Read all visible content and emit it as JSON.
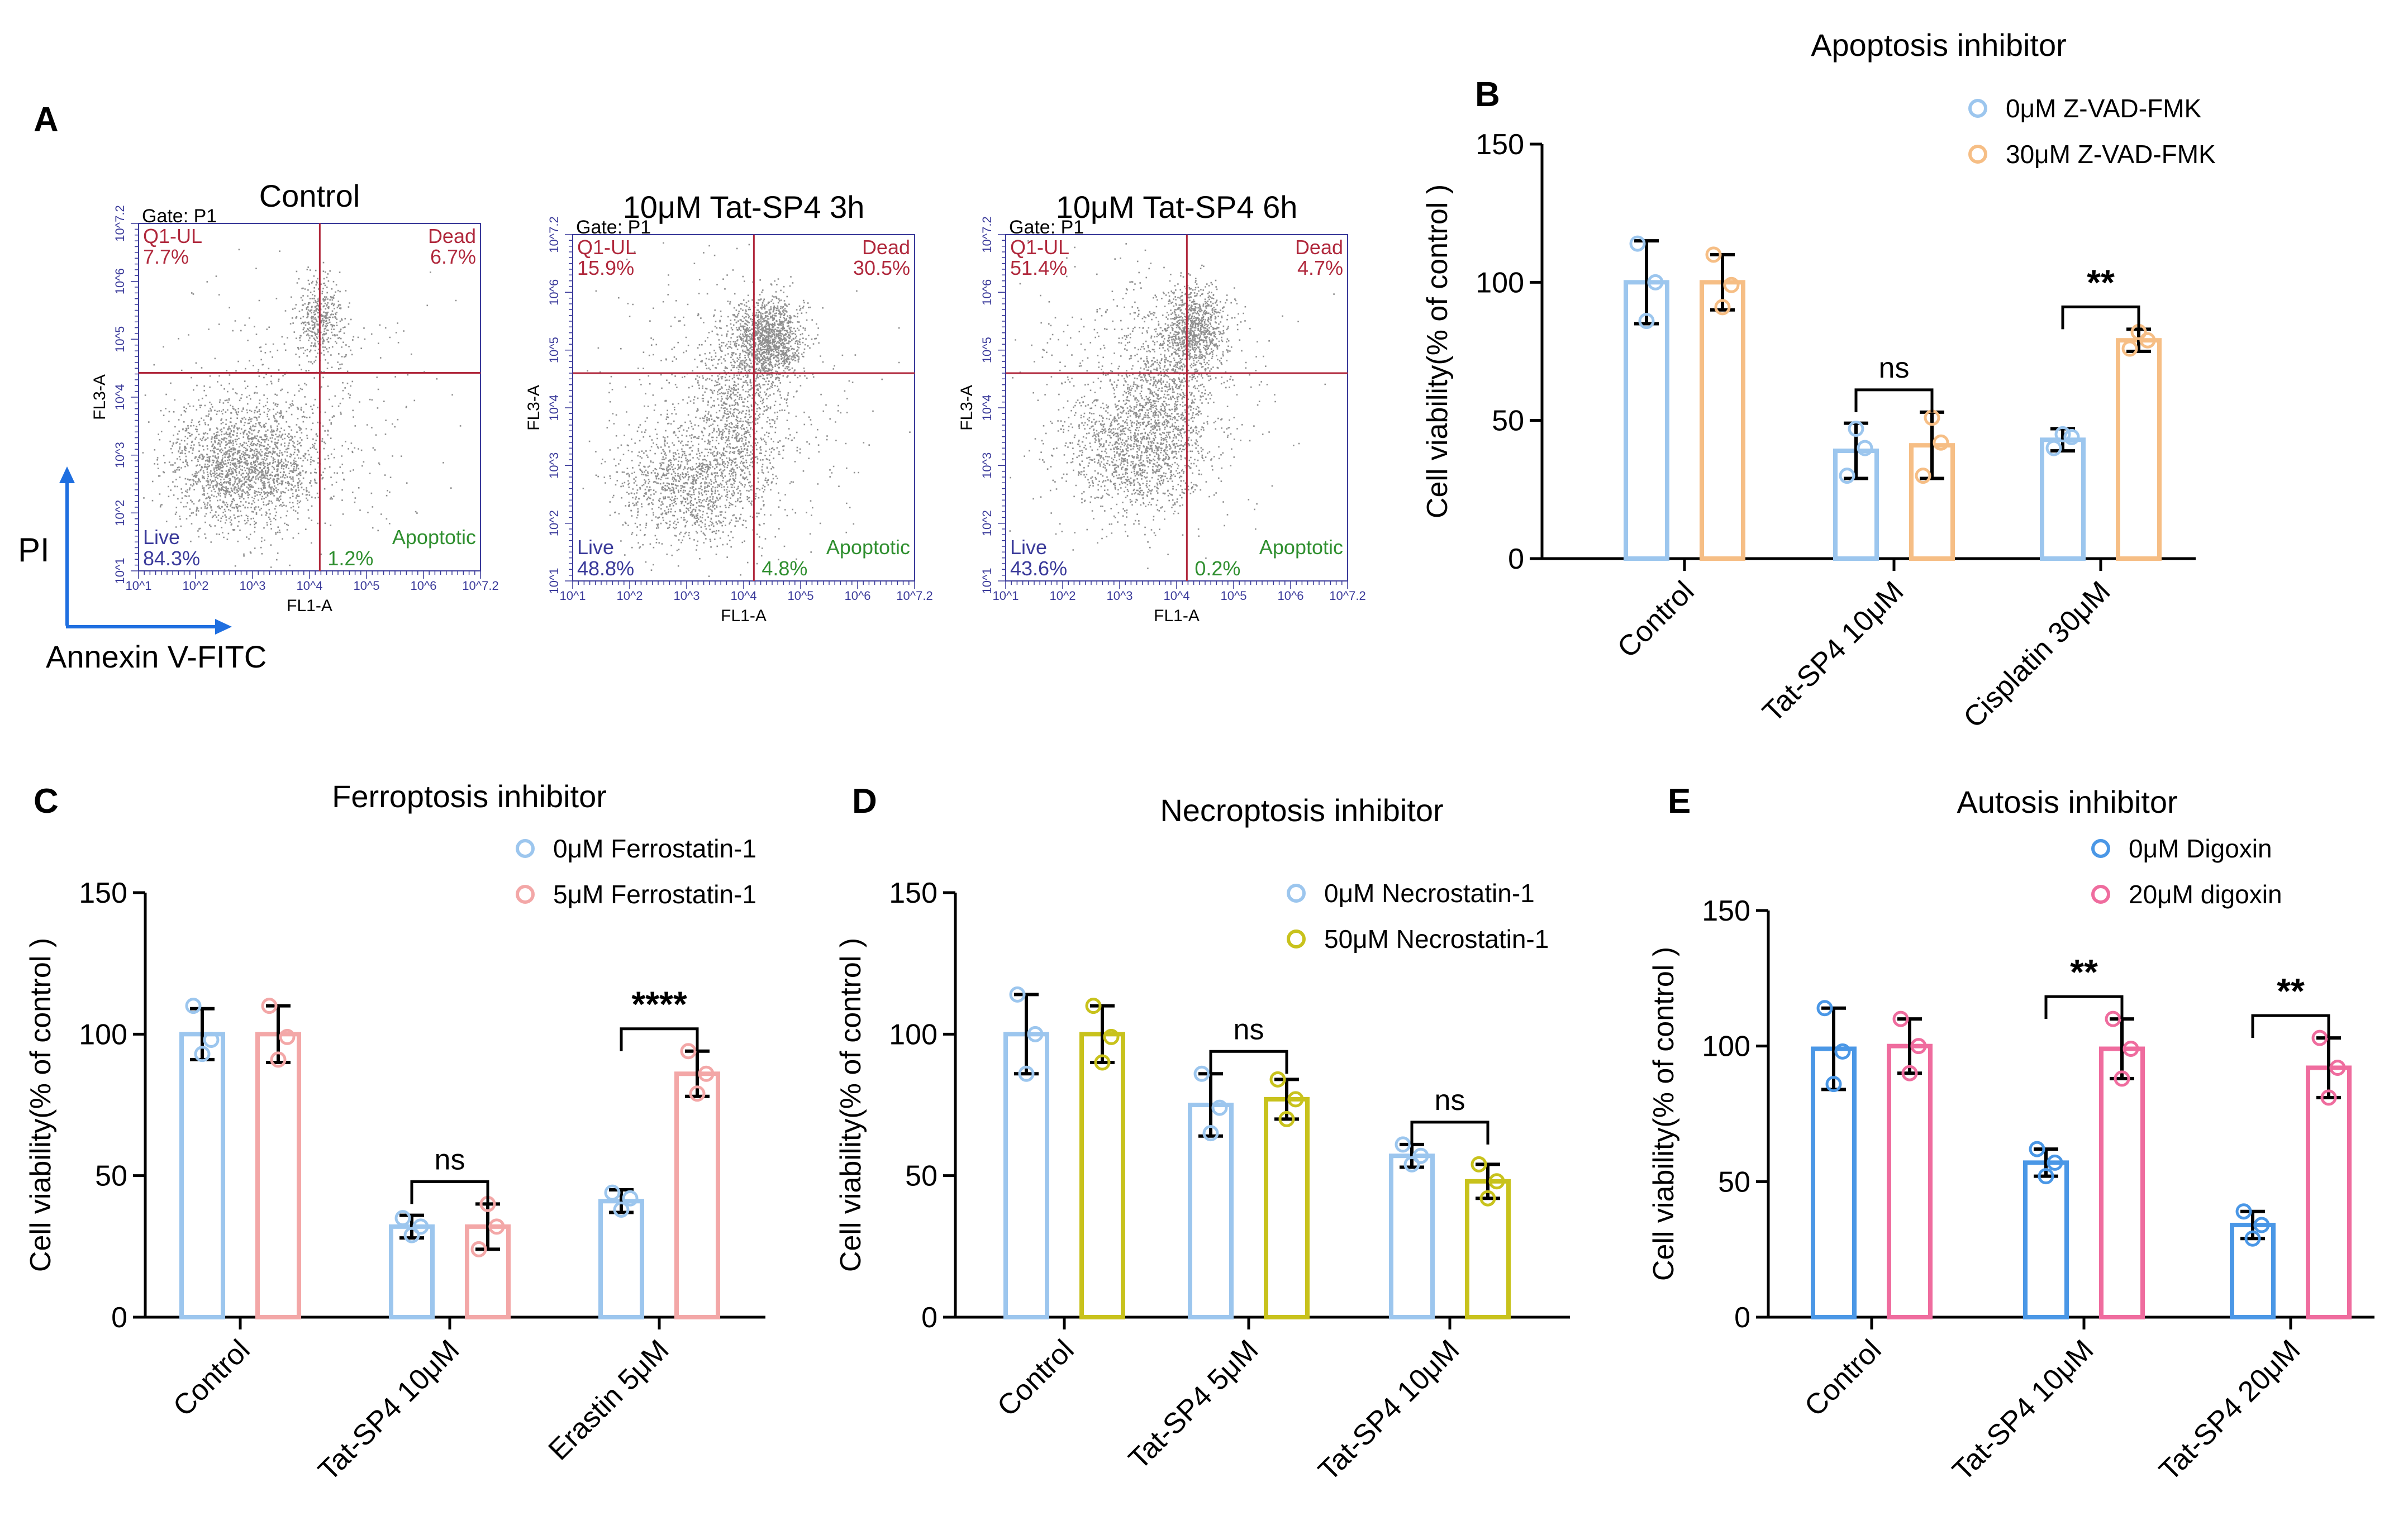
{
  "panel_a": {
    "letter": "A",
    "pi_label": "PI",
    "annexin_label": "Annexin V-FITC",
    "plots": [
      {
        "title": "Control",
        "gate": "Gate: P1",
        "q1_label": "Q1-UL",
        "q1_value": "7.7%",
        "dead_label": "Dead",
        "dead_value": "6.7%",
        "live_label": "Live",
        "live_value": "84.3%",
        "apop_label": "Apoptotic",
        "apop_value": "1.2%",
        "x_axis": "FL1-A",
        "y_axis": "FL3-A"
      },
      {
        "title": "10μM Tat-SP4 3h",
        "gate": "Gate: P1",
        "q1_label": "Q1-UL",
        "q1_value": "15.9%",
        "dead_label": "Dead",
        "dead_value": "30.5%",
        "live_label": "Live",
        "live_value": "48.8%",
        "apop_label": "Apoptotic",
        "apop_value": "4.8%",
        "x_axis": "FL1-A",
        "y_axis": "FL3-A"
      },
      {
        "title": "10μM Tat-SP4 6h",
        "gate": "Gate: P1",
        "q1_label": "Q1-UL",
        "q1_value": "51.4%",
        "dead_label": "Dead",
        "dead_value": "4.7%",
        "live_label": "Live",
        "live_value": "43.6%",
        "apop_label": "Apoptotic",
        "apop_value": "0.2%",
        "x_axis": "FL1-A",
        "y_axis": "FL3-A"
      }
    ],
    "tick_labels": [
      "10^1",
      "10^2",
      "10^3",
      "10^4",
      "10^5",
      "10^6",
      "10^7.2"
    ],
    "colors": {
      "gate_line": "#b0283c",
      "dead_text": "#b0283c",
      "apop_text": "#2f8f2f",
      "dots": "#333333",
      "arrow": "#1f6fe0"
    }
  },
  "chart_data": [
    {
      "panel": "B",
      "type": "bar",
      "title": "Apoptosis inhibitor",
      "ylabel": "Cell viability(% of control )",
      "ylim": [
        0,
        150
      ],
      "yticks": [
        0,
        50,
        100,
        150
      ],
      "categories": [
        "Control",
        "Tat-SP4 10μM",
        "Cisplatin 30μM"
      ],
      "series": [
        {
          "name": "0μM Z-VAD-FMK",
          "color": "#9cc6ee",
          "values": [
            100,
            39,
            43
          ],
          "sd": [
            15,
            10,
            4
          ],
          "points": [
            [
              114,
              86,
              100
            ],
            [
              30,
              47,
              40
            ],
            [
              40,
              45,
              44
            ]
          ]
        },
        {
          "name": "30μM Z-VAD-FMK",
          "color": "#f6be85",
          "values": [
            100,
            41,
            79
          ],
          "sd": [
            10,
            12,
            4
          ],
          "points": [
            [
              110,
              91,
              99
            ],
            [
              30,
              51,
              42
            ],
            [
              76,
              82,
              79
            ]
          ]
        }
      ],
      "significance": [
        "",
        "ns",
        "**"
      ]
    },
    {
      "panel": "C",
      "type": "bar",
      "title": "Ferroptosis inhibitor",
      "ylabel": "Cell viability(% of control )",
      "ylim": [
        0,
        150
      ],
      "yticks": [
        0,
        50,
        100,
        150
      ],
      "categories": [
        "Control",
        "Tat-SP4 10μM",
        "Erastin 5μM"
      ],
      "series": [
        {
          "name": "0μM  Ferrostatin-1",
          "color": "#9cc6ee",
          "values": [
            100,
            32,
            41
          ],
          "sd": [
            9,
            4,
            4
          ],
          "points": [
            [
              110,
              93,
              98
            ],
            [
              35,
              29,
              32
            ],
            [
              44,
              38,
              42
            ]
          ]
        },
        {
          "name": "5μM  Ferrostatin-1",
          "color": "#f3a7a7",
          "values": [
            100,
            32,
            86
          ],
          "sd": [
            10,
            8,
            8
          ],
          "points": [
            [
              110,
              91,
              99
            ],
            [
              24,
              40,
              32
            ],
            [
              94,
              79,
              86
            ]
          ]
        }
      ],
      "significance": [
        "",
        "ns",
        "****"
      ]
    },
    {
      "panel": "D",
      "type": "bar",
      "title": "Necroptosis  inhibitor",
      "ylabel": "Cell viability(% of control )",
      "ylim": [
        0,
        150
      ],
      "yticks": [
        0,
        50,
        100,
        150
      ],
      "categories": [
        "Control",
        "Tat-SP4 5μM",
        "Tat-SP4 10μM"
      ],
      "series": [
        {
          "name": "0μM Necrostatin-1",
          "color": "#9cc6ee",
          "values": [
            100,
            75,
            57
          ],
          "sd": [
            14,
            11,
            4
          ],
          "points": [
            [
              114,
              86,
              100
            ],
            [
              86,
              65,
              74
            ],
            [
              61,
              54,
              57
            ]
          ]
        },
        {
          "name": "50μM Necrostatin-1",
          "color": "#c8c21c",
          "values": [
            100,
            77,
            48
          ],
          "sd": [
            10,
            7,
            6
          ],
          "points": [
            [
              110,
              90,
              99
            ],
            [
              84,
              70,
              77
            ],
            [
              54,
              42,
              48
            ]
          ]
        }
      ],
      "significance": [
        "",
        "ns",
        "ns"
      ]
    },
    {
      "panel": "E",
      "type": "bar",
      "title": "Autosis  inhibitor",
      "ylabel": "Cell viability(% of control )",
      "ylim": [
        0,
        150
      ],
      "yticks": [
        0,
        50,
        100,
        150
      ],
      "categories": [
        "Control",
        "Tat-SP4 10μM",
        "Tat-SP4 20μM"
      ],
      "series": [
        {
          "name": "0μM Digoxin",
          "color": "#4a97e6",
          "values": [
            99,
            57,
            34
          ],
          "sd": [
            15,
            5,
            5
          ],
          "points": [
            [
              114,
              86,
              98
            ],
            [
              62,
              52,
              57
            ],
            [
              39,
              29,
              34
            ]
          ]
        },
        {
          "name": "20μM digoxin",
          "color": "#ef6c9e",
          "values": [
            100,
            99,
            92
          ],
          "sd": [
            10,
            11,
            11
          ],
          "points": [
            [
              110,
              90,
              100
            ],
            [
              110,
              88,
              99
            ],
            [
              103,
              81,
              92
            ]
          ]
        }
      ],
      "significance": [
        "",
        "**",
        "**"
      ]
    }
  ]
}
